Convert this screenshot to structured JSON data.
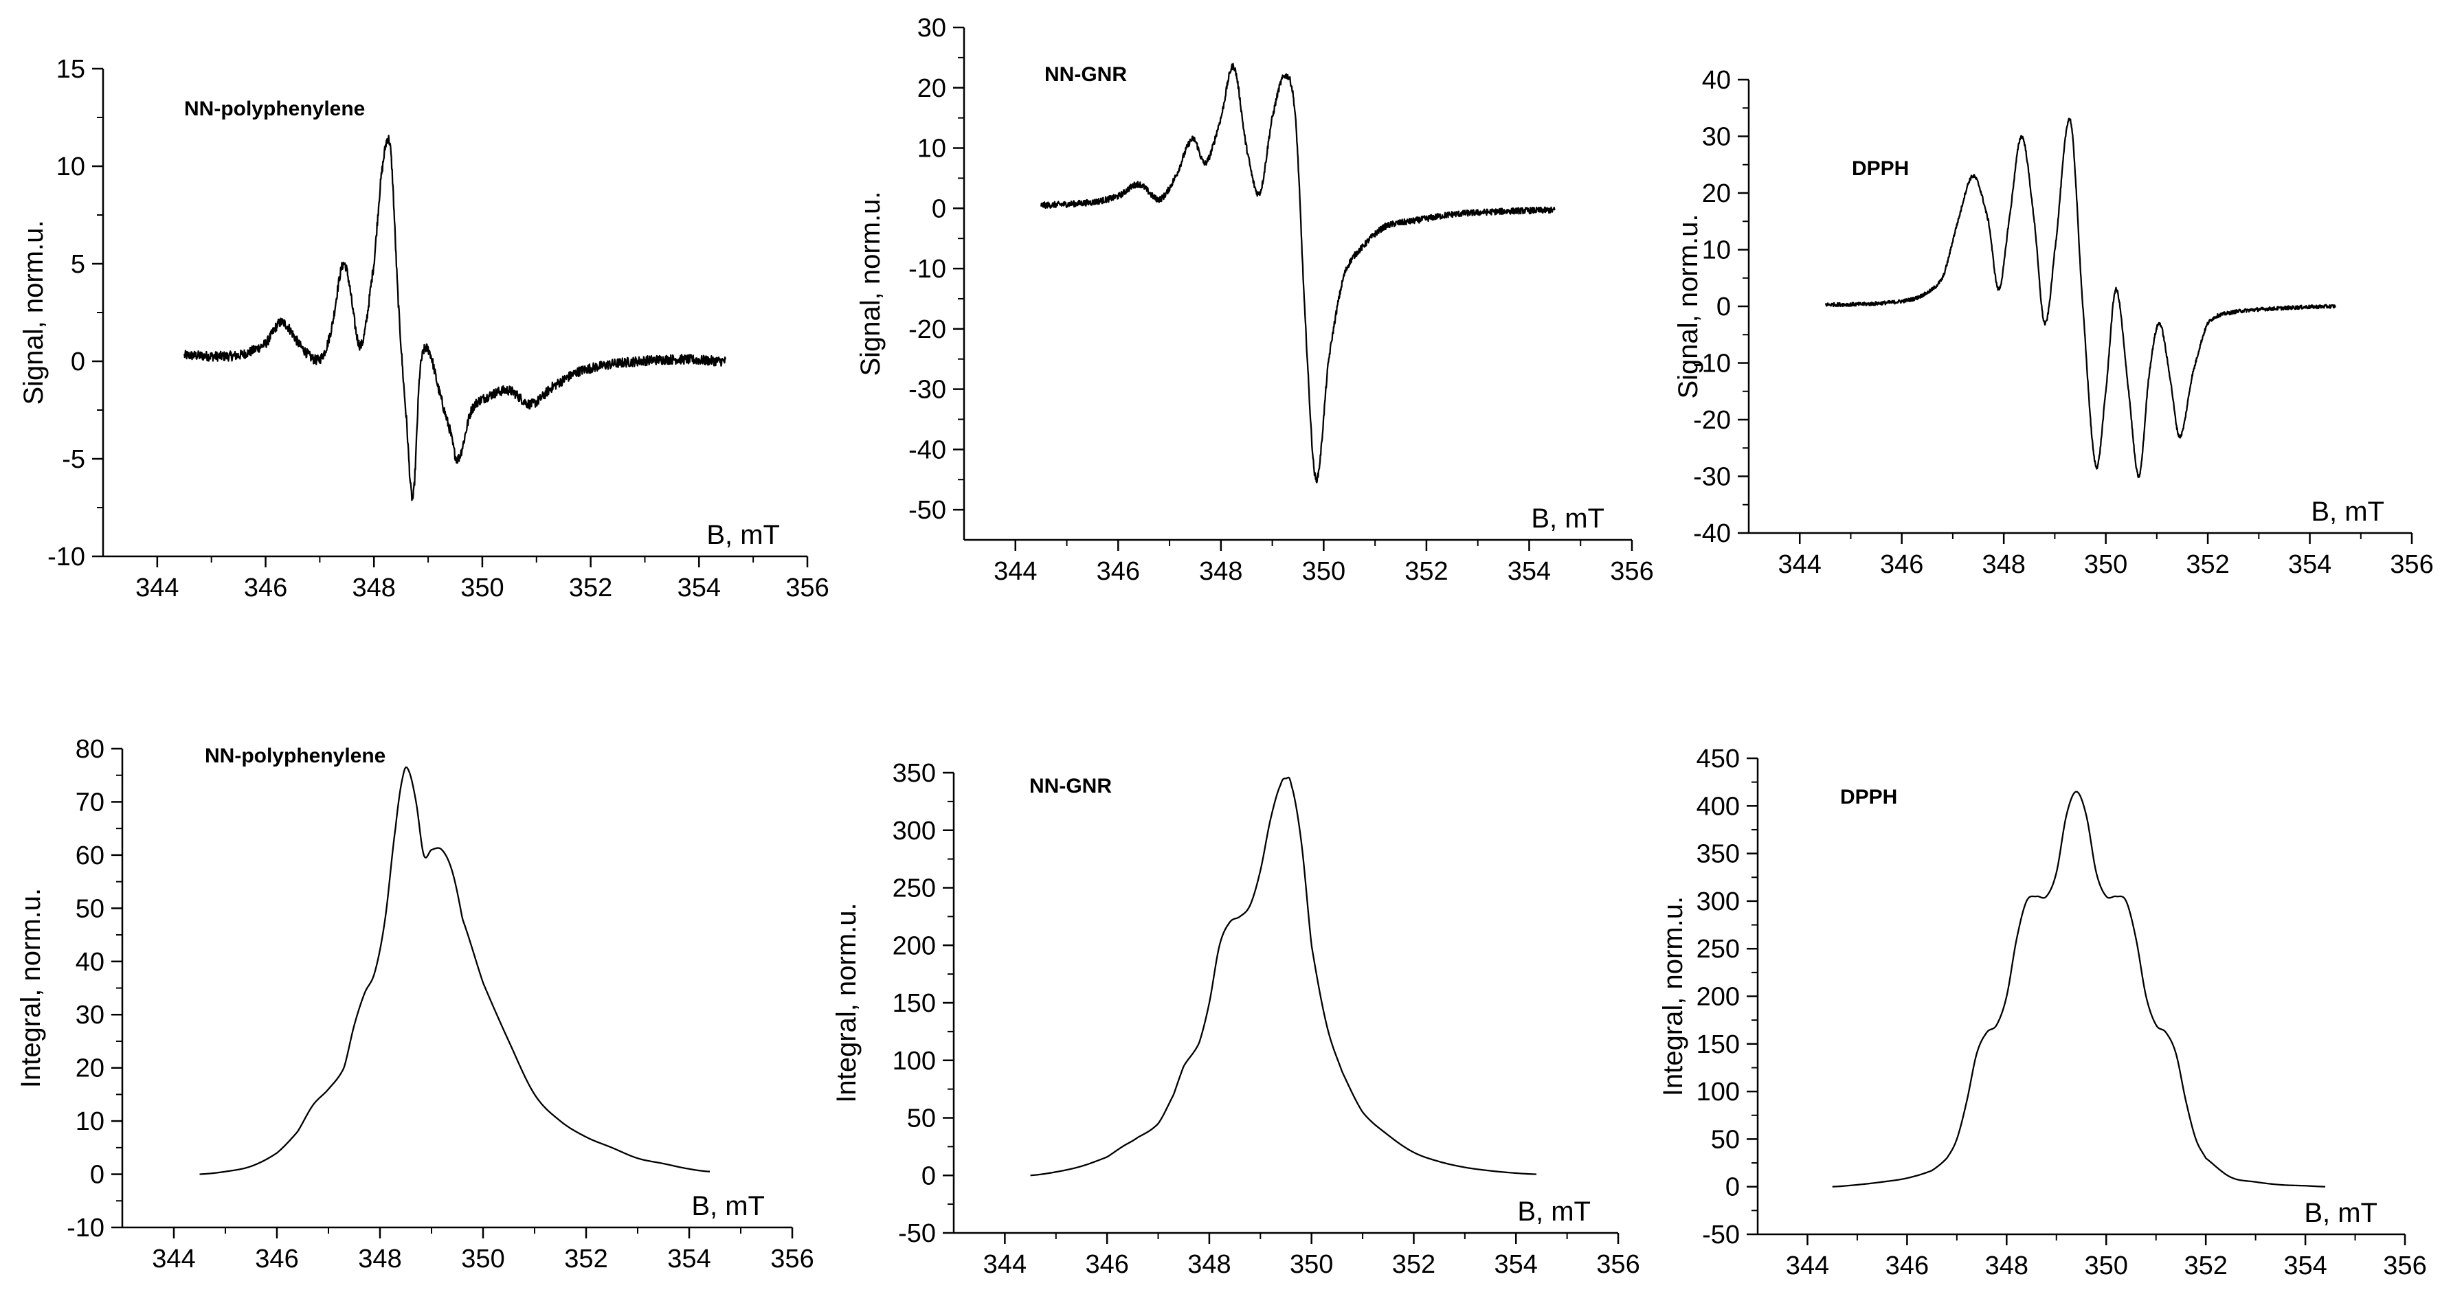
{
  "chart_data": [
    {
      "type": "line",
      "title": "NN-polyphenylene",
      "xlabel": "B, mT",
      "ylabel": "Signal, norm.u.",
      "xlim": [
        343,
        356
      ],
      "ylim": [
        -10,
        15
      ],
      "xticks": [
        "344",
        "346",
        "348",
        "350",
        "352",
        "354",
        "356"
      ],
      "yticks": [
        "-10",
        "-5",
        "0",
        "5",
        "10",
        "15"
      ],
      "noise": 0.25,
      "series": [
        {
          "name": "NN-polyphenylene",
          "x": [
            344.5,
            345.5,
            346.0,
            346.3,
            346.7,
            347.0,
            347.2,
            347.45,
            347.75,
            348.0,
            348.15,
            348.3,
            348.45,
            348.6,
            348.72,
            348.85,
            349.0,
            349.2,
            349.4,
            349.55,
            349.8,
            350.1,
            350.5,
            350.9,
            351.3,
            351.8,
            352.5,
            353.5,
            354.5
          ],
          "y": [
            0.3,
            0.3,
            0.9,
            2.0,
            0.6,
            0.1,
            1.5,
            5.0,
            0.8,
            5.0,
            9.8,
            11.0,
            3.0,
            -3.0,
            -7.0,
            -0.5,
            0.6,
            -1.5,
            -3.5,
            -5.0,
            -2.5,
            -1.8,
            -1.5,
            -2.2,
            -1.3,
            -0.5,
            -0.1,
            0.1,
            0.0
          ]
        }
      ]
    },
    {
      "type": "line",
      "title": "NN-GNR",
      "xlabel": "B, mT",
      "ylabel": "Signal, norm.u.",
      "xlim": [
        343,
        356
      ],
      "ylim": [
        -55,
        30
      ],
      "xticks": [
        "344",
        "346",
        "348",
        "350",
        "352",
        "354",
        "356"
      ],
      "yticks": [
        "-50",
        "-40",
        "-30",
        "-20",
        "-10",
        "0",
        "10",
        "20",
        "30"
      ],
      "noise": 0.15,
      "series": [
        {
          "name": "NN-GNR",
          "x": [
            344.5,
            345.5,
            346.0,
            346.4,
            346.8,
            347.1,
            347.45,
            347.7,
            348.0,
            348.25,
            348.5,
            348.75,
            349.0,
            349.25,
            349.45,
            349.65,
            349.85,
            350.1,
            350.4,
            350.8,
            351.2,
            351.8,
            352.5,
            353.5,
            354.5
          ],
          "y": [
            0.5,
            1.0,
            2.0,
            4.0,
            1.5,
            5.0,
            11.5,
            7.5,
            15.0,
            23.5,
            10.0,
            2.5,
            15.0,
            22.0,
            15.0,
            -20.0,
            -45.0,
            -25.0,
            -11.0,
            -6.0,
            -3.0,
            -2.0,
            -1.0,
            -0.5,
            -0.3
          ]
        }
      ]
    },
    {
      "type": "line",
      "title": "DPPH",
      "xlabel": "B, mT",
      "ylabel": "Signal, norm.u.",
      "xlim": [
        343,
        356
      ],
      "ylim": [
        -40,
        40
      ],
      "xticks": [
        "344",
        "346",
        "348",
        "350",
        "352",
        "354",
        "356"
      ],
      "yticks": [
        "-40",
        "-30",
        "-20",
        "-10",
        "0",
        "10",
        "20",
        "30",
        "40"
      ],
      "noise": 0.1,
      "series": [
        {
          "name": "DPPH",
          "x": [
            344.5,
            345.5,
            346.3,
            346.8,
            347.1,
            347.4,
            347.7,
            347.9,
            348.1,
            348.35,
            348.6,
            348.8,
            349.0,
            349.3,
            349.55,
            349.8,
            350.0,
            350.2,
            350.45,
            350.65,
            350.85,
            351.05,
            351.25,
            351.45,
            351.7,
            352.0,
            352.5,
            353.5,
            354.5
          ],
          "y": [
            0.3,
            0.5,
            1.5,
            5.0,
            15.0,
            23.0,
            15.0,
            3.0,
            15.0,
            30.0,
            15.0,
            -3.0,
            10.0,
            33.0,
            0.0,
            -28.0,
            -15.0,
            3.0,
            -15.0,
            -30.0,
            -12.0,
            -3.0,
            -12.0,
            -23.0,
            -12.0,
            -3.0,
            -1.0,
            -0.3,
            0.0
          ]
        }
      ]
    },
    {
      "type": "line",
      "title": "NN-polyphenylene",
      "xlabel": "B, mT",
      "ylabel": "Integral, norm.u.",
      "xlim": [
        343,
        356
      ],
      "ylim": [
        -10,
        80
      ],
      "xticks": [
        "344",
        "346",
        "348",
        "350",
        "352",
        "354",
        "356"
      ],
      "yticks": [
        "-10",
        "0",
        "10",
        "20",
        "30",
        "40",
        "50",
        "60",
        "70",
        "80"
      ],
      "noise": 0,
      "series": [
        {
          "name": "NN-polyphenylene",
          "x": [
            344.5,
            345.0,
            345.5,
            346.0,
            346.4,
            346.7,
            347.0,
            347.3,
            347.5,
            347.7,
            347.9,
            348.1,
            348.3,
            348.45,
            348.55,
            348.7,
            348.85,
            349.0,
            349.2,
            349.4,
            349.6,
            350.0,
            350.5,
            351.0,
            351.5,
            352.0,
            352.5,
            353.0,
            353.5,
            354.0,
            354.4
          ],
          "y": [
            0.0,
            0.5,
            1.5,
            4.0,
            8.0,
            13.0,
            16.0,
            20.0,
            28.0,
            34.0,
            38.0,
            48.0,
            65.0,
            75.0,
            76.0,
            70.0,
            60.0,
            61.0,
            61.0,
            57.0,
            48.0,
            36.0,
            25.0,
            15.0,
            10.0,
            7.0,
            5.0,
            3.0,
            2.0,
            1.0,
            0.5
          ]
        }
      ]
    },
    {
      "type": "line",
      "title": "NN-GNR",
      "xlabel": "B, mT",
      "ylabel": "Integral, norm.u.",
      "xlim": [
        343,
        356
      ],
      "ylim": [
        -50,
        350
      ],
      "xticks": [
        "344",
        "346",
        "348",
        "350",
        "352",
        "354",
        "356"
      ],
      "yticks": [
        "-50",
        "0",
        "50",
        "100",
        "150",
        "200",
        "250",
        "300",
        "350"
      ],
      "noise": 0,
      "series": [
        {
          "name": "NN-GNR",
          "x": [
            344.5,
            345.0,
            345.5,
            346.0,
            346.3,
            346.6,
            347.0,
            347.3,
            347.5,
            347.8,
            348.0,
            348.2,
            348.4,
            348.6,
            348.8,
            349.0,
            349.2,
            349.4,
            349.5,
            349.6,
            349.8,
            350.0,
            350.3,
            350.6,
            351.0,
            351.5,
            352.0,
            352.5,
            353.0,
            353.5,
            354.0,
            354.4
          ],
          "y": [
            0,
            3,
            8,
            16,
            25,
            33,
            45,
            70,
            95,
            115,
            150,
            200,
            220,
            225,
            235,
            265,
            310,
            340,
            345,
            340,
            290,
            200,
            130,
            90,
            55,
            35,
            20,
            12,
            7,
            4,
            2,
            1
          ]
        }
      ]
    },
    {
      "type": "line",
      "title": "DPPH",
      "xlabel": "B, mT",
      "ylabel": "Integral, norm.u.",
      "xlim": [
        343,
        356
      ],
      "ylim": [
        -50,
        450
      ],
      "xticks": [
        "344",
        "346",
        "348",
        "350",
        "352",
        "354",
        "356"
      ],
      "yticks": [
        "-50",
        "0",
        "50",
        "100",
        "150",
        "200",
        "250",
        "300",
        "350",
        "400",
        "450"
      ],
      "noise": 0,
      "series": [
        {
          "name": "DPPH",
          "x": [
            344.5,
            345.0,
            345.5,
            346.0,
            346.5,
            346.8,
            347.0,
            347.2,
            347.4,
            347.6,
            347.8,
            348.0,
            348.2,
            348.4,
            348.6,
            348.8,
            349.0,
            349.2,
            349.4,
            349.6,
            349.8,
            350.0,
            350.2,
            350.4,
            350.6,
            350.8,
            351.0,
            351.2,
            351.4,
            351.6,
            351.8,
            352.0,
            352.5,
            353.0,
            353.5,
            354.0,
            354.4
          ],
          "y": [
            0,
            2,
            5,
            9,
            17,
            30,
            50,
            90,
            140,
            162,
            170,
            200,
            260,
            300,
            305,
            305,
            330,
            390,
            415,
            390,
            330,
            305,
            305,
            300,
            260,
            200,
            170,
            162,
            140,
            90,
            50,
            30,
            10,
            5,
            2,
            1,
            0
          ]
        }
      ]
    }
  ]
}
